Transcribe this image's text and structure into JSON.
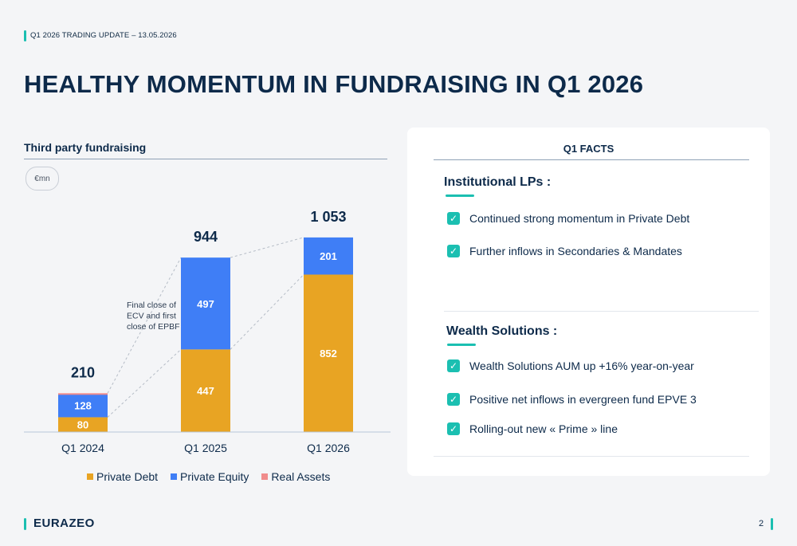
{
  "header": {
    "label": "Q1 2026 TRADING UPDATE  –  13.05.2026",
    "title": "HEALTHY MOMENTUM IN FUNDRAISING IN Q1 2026"
  },
  "chart_data": {
    "type": "bar",
    "stacked": true,
    "title": "Third party fundraising",
    "unit": "€mn",
    "categories": [
      "Q1 2024",
      "Q1 2025",
      "Q1 2026"
    ],
    "series": [
      {
        "name": "Private Debt",
        "values": [
          80,
          447,
          852
        ],
        "color": "#e8a423"
      },
      {
        "name": "Private Equity",
        "values": [
          128,
          497,
          201
        ],
        "color": "#3f7ef6"
      },
      {
        "name": "Real Assets",
        "values": [
          2,
          0,
          0
        ],
        "color": "#f08c8c"
      }
    ],
    "totals": [
      "210",
      "944",
      "1 053"
    ],
    "annotation": "Final close of ECV and first close of EPBF",
    "ylim": [
      0,
      1100
    ],
    "legend_position": "bottom"
  },
  "facts": {
    "title": "Q1 FACTS",
    "sections": [
      {
        "title": "Institutional LPs :",
        "items": [
          "Continued strong momentum in Private Debt",
          "Further inflows in Secondaries & Mandates"
        ]
      },
      {
        "title": "Wealth Solutions :",
        "items": [
          "Wealth Solutions AUM up +16% year-on-year",
          "Positive net inflows in evergreen fund EPVE 3",
          "Rolling-out new « Prime » line"
        ]
      }
    ],
    "check_icon": "checkmark-icon",
    "accent_color": "#1bbfb1"
  },
  "footer": {
    "logo": "EURAZEO",
    "page": "2"
  }
}
